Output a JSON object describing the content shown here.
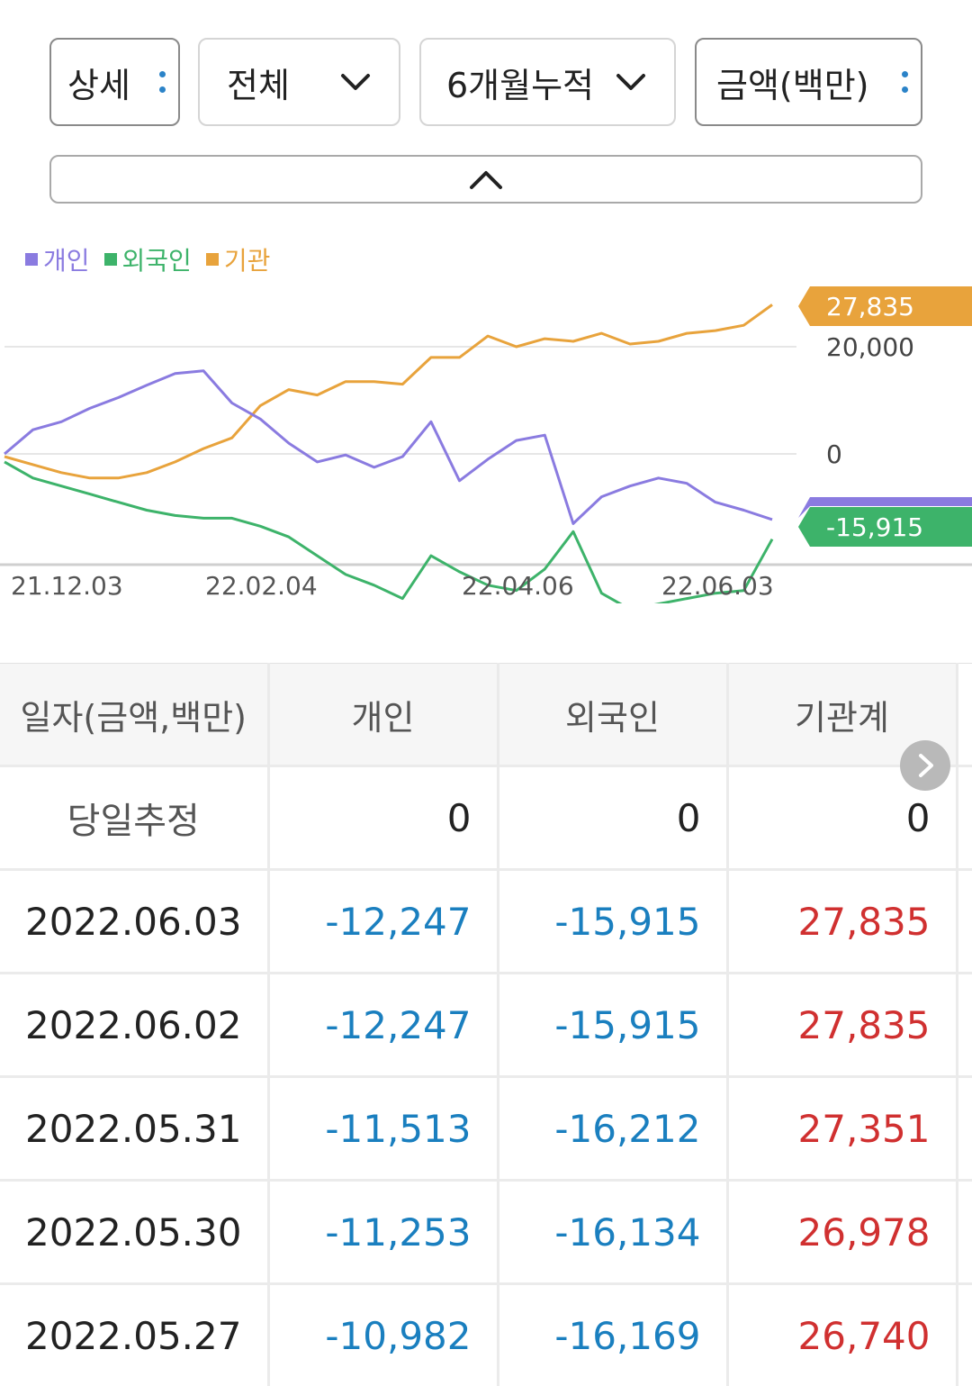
{
  "filters": {
    "detail": "상세",
    "scope": "전체",
    "period": "6개월누적",
    "unit": "금액(백만)"
  },
  "legend": [
    {
      "label": "개인",
      "color": "#8a7be0"
    },
    {
      "label": "외국인",
      "color": "#3db36a"
    },
    {
      "label": "기관",
      "color": "#e8a33c"
    }
  ],
  "chart_data": {
    "type": "line",
    "x_ticks": [
      "21.12.03",
      "22.02.04",
      "22.04.06",
      "22.06.03"
    ],
    "y_ticks": [
      "20,000",
      "0"
    ],
    "end_labels": {
      "institution": "27,835",
      "foreigner": "-15,915"
    },
    "series": [
      {
        "name": "개인",
        "color": "#8a7be0",
        "values": [
          0,
          4500,
          6000,
          8500,
          10500,
          12800,
          15000,
          15500,
          9500,
          6500,
          2000,
          -1500,
          -200,
          -2500,
          -500,
          6000,
          -5000,
          -1000,
          2500,
          3500,
          -13000,
          -8000,
          -6000,
          -4500,
          -5500,
          -9000,
          -10500,
          -12247
        ]
      },
      {
        "name": "외국인",
        "color": "#3db36a",
        "values": [
          -1500,
          -4500,
          -6000,
          -7500,
          -9000,
          -10500,
          -11500,
          -12000,
          -12000,
          -13500,
          -15500,
          -19000,
          -22500,
          -24500,
          -27000,
          -19000,
          -22000,
          -24500,
          -25500,
          -21500,
          -14500,
          -26000,
          -29000,
          -28000,
          -27000,
          -26000,
          -25500,
          -15915
        ]
      },
      {
        "name": "기관",
        "color": "#e8a33c",
        "values": [
          -500,
          -2000,
          -3500,
          -4500,
          -4500,
          -3500,
          -1500,
          1000,
          3000,
          9000,
          12000,
          11000,
          13500,
          13500,
          13000,
          18000,
          18000,
          22000,
          20000,
          21500,
          21000,
          22500,
          20500,
          21000,
          22500,
          23000,
          24000,
          27835
        ]
      }
    ]
  },
  "table": {
    "headers": [
      "일자(금액,백만)",
      "개인",
      "외국인",
      "기관계"
    ],
    "estimate_row": {
      "label": "당일추정",
      "individual": "0",
      "foreigner": "0",
      "institution": "0"
    },
    "rows": [
      {
        "date": "2022.06.03",
        "individual": "-12,247",
        "foreigner": "-15,915",
        "institution": "27,835"
      },
      {
        "date": "2022.06.02",
        "individual": "-12,247",
        "foreigner": "-15,915",
        "institution": "27,835"
      },
      {
        "date": "2022.05.31",
        "individual": "-11,513",
        "foreigner": "-16,212",
        "institution": "27,351"
      },
      {
        "date": "2022.05.30",
        "individual": "-11,253",
        "foreigner": "-16,134",
        "institution": "26,978"
      },
      {
        "date": "2022.05.27",
        "individual": "-10,982",
        "foreigner": "-16,169",
        "institution": "26,740"
      }
    ]
  }
}
